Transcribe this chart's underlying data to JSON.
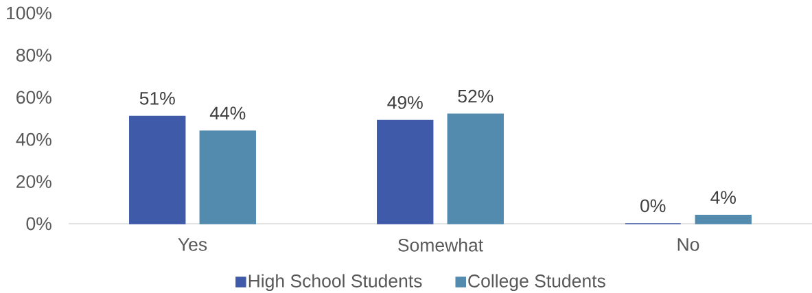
{
  "chart_data": {
    "type": "bar",
    "categories": [
      "Yes",
      "Somewhat",
      "No"
    ],
    "series": [
      {
        "name": "High School Students",
        "color": "#3f5aa8",
        "values": [
          51,
          49,
          0
        ],
        "value_labels": [
          "51%",
          "49%",
          "0%"
        ]
      },
      {
        "name": "College Students",
        "color": "#528bae",
        "values": [
          44,
          52,
          4
        ],
        "value_labels": [
          "44%",
          "52%",
          "4%"
        ]
      }
    ],
    "ylim": [
      0,
      100
    ],
    "yticks": [
      {
        "value": 0,
        "label": "0%"
      },
      {
        "value": 20,
        "label": "20%"
      },
      {
        "value": 40,
        "label": "40%"
      },
      {
        "value": 60,
        "label": "60%"
      },
      {
        "value": 80,
        "label": "80%"
      },
      {
        "value": 100,
        "label": "100%"
      }
    ],
    "legend": "bottom"
  }
}
